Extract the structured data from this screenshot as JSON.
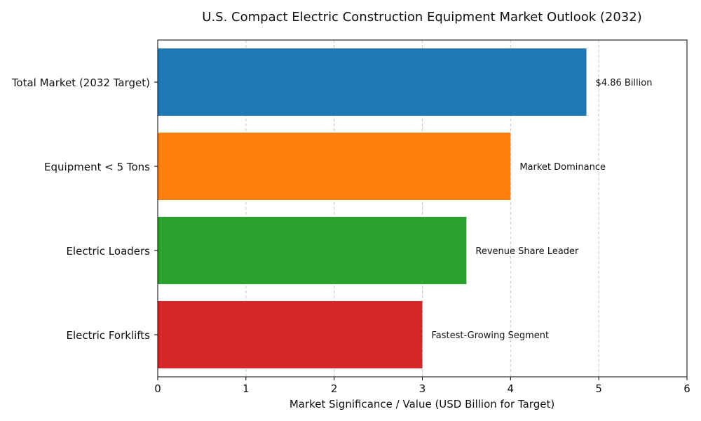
{
  "chart_data": {
    "type": "bar",
    "orientation": "horizontal",
    "title": "U.S. Compact Electric Construction Equipment Market Outlook (2032)",
    "xlabel": "Market Significance / Value (USD Billion for Target)",
    "ylabel": "",
    "xlim": [
      0,
      6
    ],
    "xticks": [
      "0",
      "1",
      "2",
      "3",
      "4",
      "5",
      "6"
    ],
    "grid": "x-dashed",
    "categories": [
      "Total Market (2032 Target)",
      "Equipment < 5 Tons",
      "Electric Loaders",
      "Electric Forklifts"
    ],
    "values": [
      4.86,
      4.0,
      3.5,
      3.0
    ],
    "bar_labels": [
      "$4.86 Billion",
      "Market Dominance",
      "Revenue Share Leader",
      "Fastest-Growing Segment"
    ],
    "colors": [
      "#1f77b4",
      "#ff7f0e",
      "#2ca02c",
      "#d62728"
    ]
  }
}
